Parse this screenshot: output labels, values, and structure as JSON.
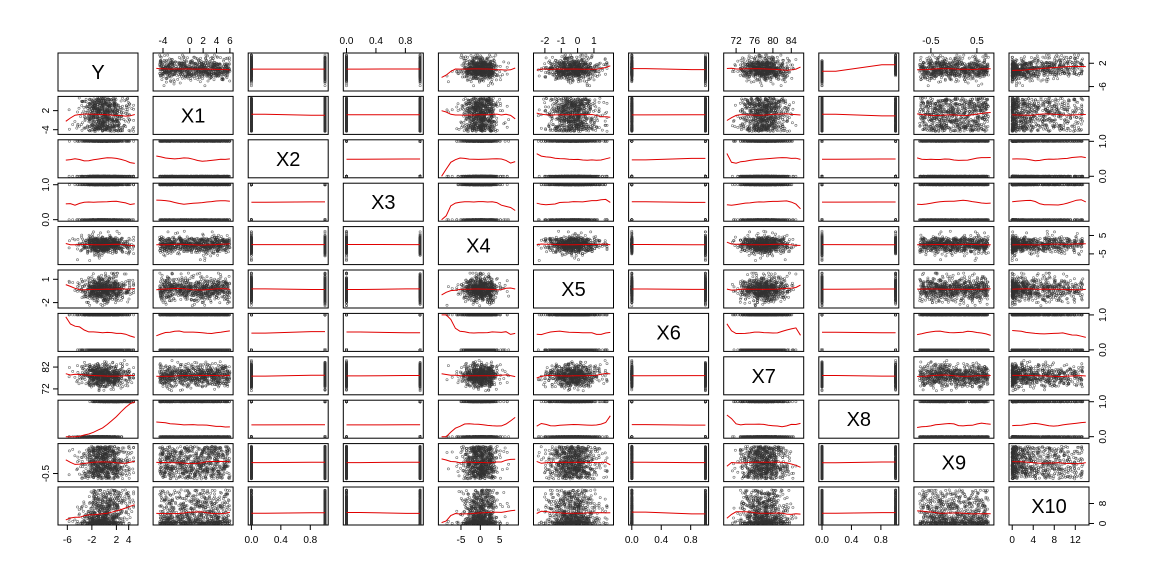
{
  "chart_data": {
    "type": "scatter",
    "variables": [
      "Y",
      "X1",
      "X2",
      "X3",
      "X4",
      "X5",
      "X6",
      "X7",
      "X8",
      "X9",
      "X10"
    ],
    "ranges": [
      [
        -7,
        5
      ],
      [
        -5,
        6
      ],
      [
        0,
        1
      ],
      [
        0,
        1
      ],
      [
        -10,
        9
      ],
      [
        -2.5,
        2
      ],
      [
        0,
        1
      ],
      [
        70,
        86
      ],
      [
        0,
        1
      ],
      [
        -0.8,
        0.8
      ],
      [
        0,
        14
      ]
    ],
    "binary_variables": [
      "X2",
      "X3",
      "X6",
      "X8"
    ],
    "axis_ticks": {
      "top": [
        {
          "variable": "X1",
          "ticks": [
            {
              "value": -4,
              "label": "-4"
            },
            {
              "value": 0,
              "label": "0"
            },
            {
              "value": 2,
              "label": "2"
            },
            {
              "value": 4,
              "label": "4"
            },
            {
              "value": 6,
              "label": "6"
            }
          ]
        },
        {
          "variable": "X3",
          "ticks": [
            {
              "value": 0.0,
              "label": "0.0"
            },
            {
              "value": 0.4,
              "label": "0.4"
            },
            {
              "value": 0.8,
              "label": "0.8"
            }
          ]
        },
        {
          "variable": "X5",
          "ticks": [
            {
              "value": -2,
              "label": "-2"
            },
            {
              "value": -1,
              "label": "-1"
            },
            {
              "value": 0,
              "label": "0"
            },
            {
              "value": 1,
              "label": "1"
            }
          ]
        },
        {
          "variable": "X7",
          "ticks": [
            {
              "value": 72,
              "label": "72"
            },
            {
              "value": 76,
              "label": "76"
            },
            {
              "value": 80,
              "label": "80"
            },
            {
              "value": 84,
              "label": "84"
            }
          ]
        },
        {
          "variable": "X9",
          "ticks": [
            {
              "value": -0.5,
              "label": "-0.5"
            },
            {
              "value": 0.5,
              "label": "0.5"
            }
          ]
        }
      ],
      "bottom": [
        {
          "variable": "Y",
          "ticks": [
            {
              "value": -6,
              "label": "-6"
            },
            {
              "value": -2,
              "label": "-2"
            },
            {
              "value": 2,
              "label": "2"
            },
            {
              "value": 4,
              "label": "4"
            }
          ]
        },
        {
          "variable": "X2",
          "ticks": [
            {
              "value": 0.0,
              "label": "0.0"
            },
            {
              "value": 0.4,
              "label": "0.4"
            },
            {
              "value": 0.8,
              "label": "0.8"
            }
          ]
        },
        {
          "variable": "X4",
          "ticks": [
            {
              "value": -5,
              "label": "-5"
            },
            {
              "value": 0,
              "label": "0"
            },
            {
              "value": 5,
              "label": "5"
            }
          ]
        },
        {
          "variable": "X6",
          "ticks": [
            {
              "value": 0.0,
              "label": "0.0"
            },
            {
              "value": 0.4,
              "label": "0.4"
            },
            {
              "value": 0.8,
              "label": "0.8"
            }
          ]
        },
        {
          "variable": "X8",
          "ticks": [
            {
              "value": 0.0,
              "label": "0.0"
            },
            {
              "value": 0.4,
              "label": "0.4"
            },
            {
              "value": 0.8,
              "label": "0.8"
            }
          ]
        },
        {
          "variable": "X10",
          "ticks": [
            {
              "value": 0,
              "label": "0"
            },
            {
              "value": 4,
              "label": "4"
            },
            {
              "value": 8,
              "label": "8"
            },
            {
              "value": 12,
              "label": "12"
            }
          ]
        }
      ],
      "left": [
        {
          "variable": "X1",
          "ticks": [
            {
              "value": -4,
              "label": "-4"
            },
            {
              "value": 2,
              "label": "2"
            }
          ]
        },
        {
          "variable": "X3",
          "ticks": [
            {
              "value": 0.0,
              "label": "0.0"
            },
            {
              "value": 1.0,
              "label": "1.0"
            }
          ]
        },
        {
          "variable": "X5",
          "ticks": [
            {
              "value": -2,
              "label": "-2"
            },
            {
              "value": 1,
              "label": "1"
            }
          ]
        },
        {
          "variable": "X7",
          "ticks": [
            {
              "value": 72,
              "label": "72"
            },
            {
              "value": 82,
              "label": "82"
            }
          ]
        },
        {
          "variable": "X9",
          "ticks": [
            {
              "value": -0.5,
              "label": "-0.5"
            }
          ]
        }
      ],
      "right": [
        {
          "variable": "Y",
          "ticks": [
            {
              "value": -6,
              "label": "-6"
            },
            {
              "value": 2,
              "label": "2"
            }
          ]
        },
        {
          "variable": "X2",
          "ticks": [
            {
              "value": 0.0,
              "label": "0.0"
            },
            {
              "value": 1.0,
              "label": "1.0"
            }
          ]
        },
        {
          "variable": "X4",
          "ticks": [
            {
              "value": -5,
              "label": "-5"
            },
            {
              "value": 5,
              "label": "5"
            }
          ]
        },
        {
          "variable": "X6",
          "ticks": [
            {
              "value": 0.0,
              "label": "0.0"
            },
            {
              "value": 1.0,
              "label": "1.0"
            }
          ]
        },
        {
          "variable": "X8",
          "ticks": [
            {
              "value": 0.0,
              "label": "0.0"
            },
            {
              "value": 1.0,
              "label": "1.0"
            }
          ]
        },
        {
          "variable": "X10",
          "ticks": [
            {
              "value": 0,
              "label": "0"
            },
            {
              "value": 8,
              "label": "8"
            }
          ]
        }
      ]
    },
    "point_color": "#333333",
    "smooth_line_color": "#e00000",
    "background": "#ffffff"
  }
}
